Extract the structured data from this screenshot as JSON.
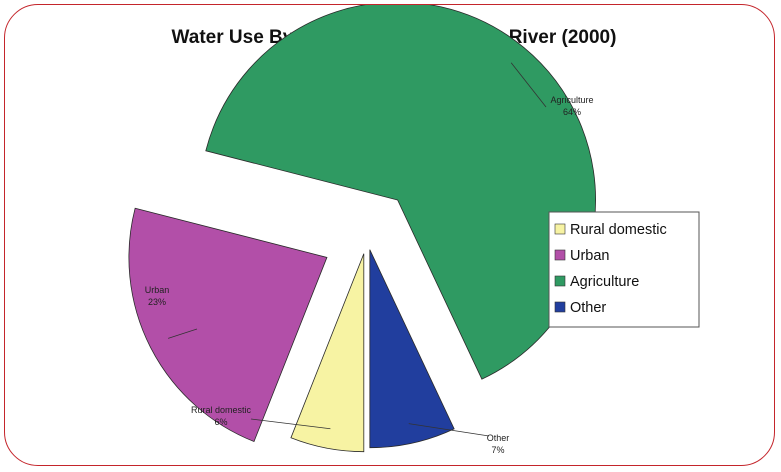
{
  "chart_data": {
    "type": "pie",
    "title": "Water Use By Sector - Whole Orange River (2000)",
    "categories": [
      "Rural domestic",
      "Urban",
      "Agriculture",
      "Other"
    ],
    "values": [
      6,
      23,
      64,
      7
    ],
    "labels": [
      {
        "name": "Agriculture",
        "pct": "64%"
      },
      {
        "name": "Urban",
        "pct": "23%"
      },
      {
        "name": "Rural domestic",
        "pct": "6%"
      },
      {
        "name": "Other",
        "pct": "7%"
      }
    ],
    "legend": {
      "position": "right",
      "entries": [
        "Rural domestic",
        "Urban",
        "Agriculture",
        "Other"
      ]
    },
    "colors": {
      "Rural domestic": "#f7f3a3",
      "Urban": "#b24fa8",
      "Agriculture": "#2f9a62",
      "Other": "#213e9e",
      "frame": "#c4252b"
    }
  }
}
